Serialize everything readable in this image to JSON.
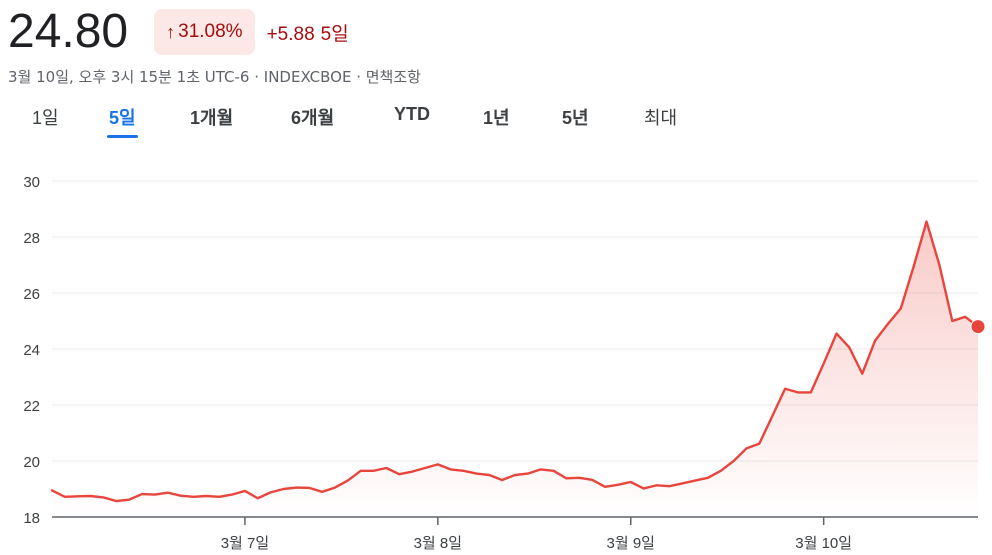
{
  "quote": {
    "price": "24.80",
    "pct_change": "31.08%",
    "arrow": "↑",
    "abs_change": "+5.88",
    "period": "5일",
    "meta": "3월 10일, 오후 3시 15분 1초 UTC-6 · INDEXCBOE · 면책조항"
  },
  "tabs": [
    {
      "label": "1일",
      "active": false
    },
    {
      "label": "5일",
      "active": true
    },
    {
      "label": "1개월",
      "active": false
    },
    {
      "label": "6개월",
      "active": false
    },
    {
      "label": "YTD",
      "active": false
    },
    {
      "label": "1년",
      "active": false
    },
    {
      "label": "5년",
      "active": false
    },
    {
      "label": "최대",
      "active": false
    }
  ],
  "colors": {
    "line": "#e8453c",
    "negative_text": "#a50e0e",
    "negative_chip": "#fce8e6",
    "active_tab": "#1a73e8",
    "grid": "#e8eaed"
  },
  "chart_data": {
    "type": "area",
    "ylim": [
      18,
      30
    ],
    "yticks": [
      18,
      20,
      22,
      24,
      26,
      28,
      30
    ],
    "x_ticks": [
      {
        "label": "3월 7일",
        "index": 15
      },
      {
        "label": "3월 8일",
        "index": 30
      },
      {
        "label": "3월 9일",
        "index": 45
      },
      {
        "label": "3월 10일",
        "index": 60
      }
    ],
    "values": [
      18.95,
      18.72,
      18.74,
      18.75,
      18.7,
      18.57,
      18.62,
      18.82,
      18.8,
      18.87,
      18.76,
      18.72,
      18.75,
      18.72,
      18.8,
      18.93,
      18.67,
      18.88,
      19.0,
      19.05,
      19.04,
      18.9,
      19.05,
      19.3,
      19.65,
      19.65,
      19.75,
      19.53,
      19.62,
      19.75,
      19.88,
      19.7,
      19.65,
      19.55,
      19.5,
      19.32,
      19.5,
      19.55,
      19.7,
      19.65,
      19.38,
      19.4,
      19.33,
      19.08,
      19.15,
      19.25,
      19.02,
      19.13,
      19.1,
      19.2,
      19.3,
      19.4,
      19.65,
      20.0,
      20.45,
      20.62,
      21.6,
      22.58,
      22.45,
      22.45,
      23.48,
      24.55,
      24.05,
      23.12,
      24.3,
      24.9,
      25.45,
      26.95,
      28.55,
      27.0,
      25.0,
      25.15,
      24.8
    ],
    "last_value": 24.8,
    "grid": true
  }
}
